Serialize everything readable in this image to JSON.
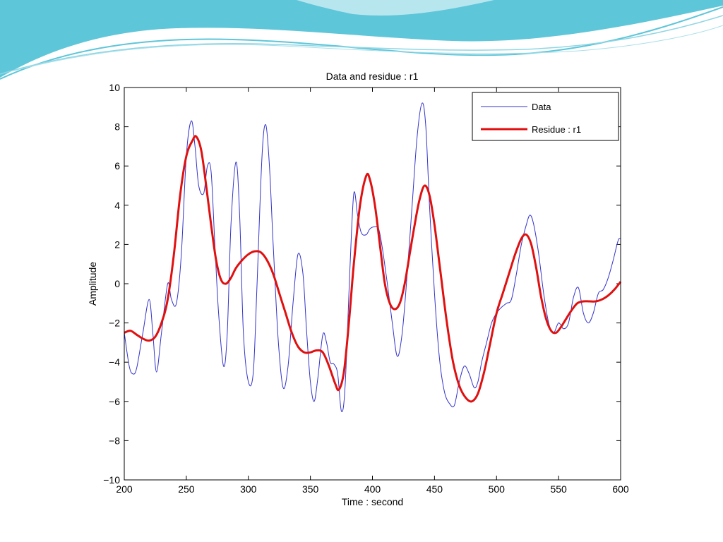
{
  "colors": {
    "background": "#ffffff",
    "wave_dark": "#5ec6d9",
    "wave_light": "#b8e6ef",
    "data_line": "#3333cc",
    "residue_line": "#e01010"
  },
  "chart_data": {
    "type": "line",
    "title": "Data and residue : r1",
    "xlabel": "Time : second",
    "ylabel": "Amplitude",
    "xlim": [
      200,
      600
    ],
    "ylim": [
      -10,
      10
    ],
    "xticks": [
      200,
      250,
      300,
      350,
      400,
      450,
      500,
      550,
      600
    ],
    "yticks": [
      -10,
      -8,
      -6,
      -4,
      -2,
      0,
      2,
      4,
      6,
      8,
      10
    ],
    "legend_position": "top-right",
    "series": [
      {
        "name": "Data",
        "color": "#3333cc",
        "width": 1,
        "x": [
          200,
          204,
          207,
          210,
          215,
          220,
          223,
          226,
          230,
          235,
          238,
          242,
          246,
          250,
          254,
          257,
          260,
          264,
          267,
          270,
          273,
          276,
          280,
          283,
          286,
          290,
          293,
          296,
          300,
          304,
          307,
          311,
          314,
          317,
          320,
          324,
          328,
          332,
          336,
          340,
          344,
          347,
          350,
          353,
          356,
          360,
          363,
          366,
          369,
          372,
          375,
          378,
          382,
          385,
          388,
          391,
          395,
          398,
          402,
          405,
          408,
          412,
          416,
          420,
          424,
          428,
          432,
          436,
          440,
          443,
          446,
          450,
          454,
          458,
          462,
          466,
          470,
          474,
          478,
          482,
          485,
          488,
          492,
          496,
          500,
          504,
          508,
          512,
          516,
          520,
          524,
          527,
          530,
          534,
          538,
          542,
          546,
          550,
          554,
          558,
          562,
          566,
          570,
          574,
          578,
          582,
          586,
          590,
          594,
          598,
          600
        ],
        "y": [
          -2.5,
          -4.2,
          -4.6,
          -4.3,
          -2.5,
          -0.8,
          -2.5,
          -4.5,
          -2.5,
          0.0,
          -0.8,
          -1.0,
          1.5,
          6.5,
          8.3,
          7.0,
          5.0,
          4.6,
          6.0,
          5.7,
          2.0,
          -1.5,
          -4.2,
          -2.5,
          3.0,
          6.2,
          3.5,
          -2.5,
          -5.0,
          -4.5,
          0.0,
          6.5,
          8.1,
          6.0,
          2.0,
          -2.8,
          -5.3,
          -4.2,
          -1.0,
          1.5,
          0.5,
          -2.5,
          -5.0,
          -6.0,
          -4.8,
          -2.6,
          -3.0,
          -4.0,
          -4.1,
          -4.6,
          -6.5,
          -5.2,
          1.0,
          4.6,
          3.5,
          2.6,
          2.5,
          2.8,
          2.9,
          2.8,
          1.8,
          0.0,
          -2.0,
          -3.7,
          -2.5,
          0.5,
          4.0,
          7.5,
          9.2,
          8.0,
          4.0,
          -0.5,
          -3.8,
          -5.5,
          -6.1,
          -6.2,
          -5.0,
          -4.2,
          -4.6,
          -5.3,
          -5.0,
          -4.0,
          -3.0,
          -2.0,
          -1.5,
          -1.2,
          -1.0,
          -0.8,
          0.5,
          2.0,
          3.0,
          3.5,
          3.0,
          1.5,
          -0.5,
          -2.0,
          -2.5,
          -2.0,
          -2.3,
          -2.0,
          -0.7,
          -0.2,
          -1.5,
          -2.0,
          -1.5,
          -0.5,
          -0.3,
          0.3,
          1.2,
          2.2,
          2.3
        ]
      },
      {
        "name": "Residue : r1",
        "color": "#e01010",
        "width": 3,
        "x": [
          200,
          205,
          210,
          215,
          220,
          225,
          230,
          235,
          240,
          245,
          250,
          255,
          258,
          262,
          266,
          270,
          274,
          278,
          282,
          286,
          290,
          295,
          300,
          305,
          310,
          315,
          320,
          325,
          330,
          335,
          340,
          345,
          350,
          355,
          360,
          365,
          370,
          373,
          377,
          381,
          385,
          390,
          395,
          398,
          402,
          406,
          410,
          414,
          418,
          422,
          426,
          430,
          434,
          438,
          442,
          446,
          450,
          455,
          460,
          465,
          470,
          475,
          480,
          485,
          490,
          495,
          500,
          505,
          510,
          515,
          520,
          524,
          528,
          532,
          536,
          540,
          544,
          548,
          552,
          556,
          560,
          565,
          570,
          575,
          580,
          585,
          590,
          595,
          600
        ],
        "y": [
          -2.5,
          -2.4,
          -2.6,
          -2.8,
          -2.9,
          -2.7,
          -2.0,
          -0.8,
          1.5,
          4.5,
          6.5,
          7.3,
          7.5,
          6.8,
          5.0,
          3.0,
          1.2,
          0.2,
          0.0,
          0.3,
          0.8,
          1.2,
          1.5,
          1.65,
          1.6,
          1.2,
          0.5,
          -0.5,
          -1.5,
          -2.5,
          -3.2,
          -3.5,
          -3.5,
          -3.4,
          -3.5,
          -4.2,
          -5.1,
          -5.4,
          -4.5,
          -2.0,
          1.0,
          4.0,
          5.5,
          5.3,
          4.0,
          2.0,
          0.0,
          -1.0,
          -1.3,
          -1.0,
          0.0,
          1.5,
          3.0,
          4.3,
          5.0,
          4.5,
          3.0,
          0.5,
          -2.0,
          -4.0,
          -5.2,
          -5.8,
          -6.0,
          -5.6,
          -4.5,
          -3.0,
          -1.5,
          -0.5,
          0.5,
          1.5,
          2.3,
          2.5,
          2.0,
          0.8,
          -0.7,
          -1.8,
          -2.4,
          -2.5,
          -2.2,
          -1.8,
          -1.4,
          -1.0,
          -0.9,
          -0.9,
          -0.9,
          -0.8,
          -0.6,
          -0.3,
          0.1
        ]
      }
    ]
  }
}
